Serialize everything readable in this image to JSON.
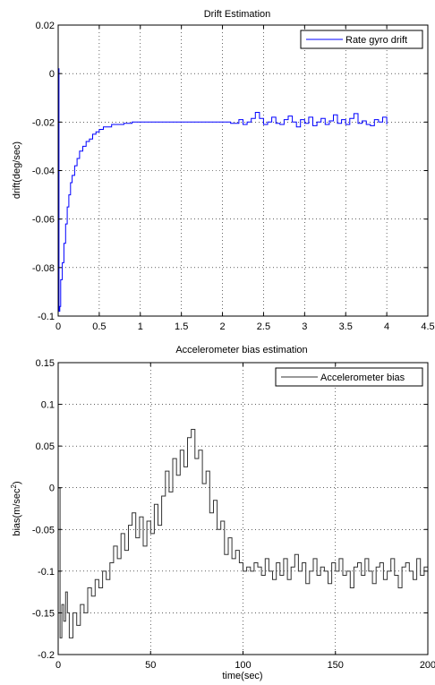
{
  "chart_data": [
    {
      "type": "line",
      "title": "Drift Estimation",
      "xlabel": "",
      "ylabel": "drift(deg/sec)",
      "xlim": [
        0,
        4.5
      ],
      "ylim": [
        -0.1,
        0.02
      ],
      "xticks": [
        0,
        0.5,
        1,
        1.5,
        2,
        2.5,
        3,
        3.5,
        4,
        4.5
      ],
      "xtick_labels": [
        "0",
        "0.5",
        "1",
        "1.5",
        "2",
        "2.5",
        "3",
        "3.5",
        "4",
        "4.5"
      ],
      "yticks": [
        0.02,
        0,
        -0.02,
        -0.04,
        -0.06,
        -0.08,
        -0.1
      ],
      "ytick_labels": [
        "0.02",
        "0",
        "-0.02",
        "-0.04",
        "-0.06",
        "-0.08",
        "-0.1"
      ],
      "grid": true,
      "legend": "top-right",
      "series": [
        {
          "name": "Rate gyro drift",
          "color": "#0000ff",
          "x": [
            0,
            0.01,
            0.02,
            0.03,
            0.05,
            0.07,
            0.09,
            0.11,
            0.13,
            0.15,
            0.17,
            0.2,
            0.23,
            0.26,
            0.3,
            0.34,
            0.38,
            0.42,
            0.46,
            0.5,
            0.55,
            0.6,
            0.65,
            0.7,
            0.8,
            0.9,
            1.0,
            1.2,
            1.4,
            1.6,
            1.8,
            2.0,
            2.1,
            2.2,
            2.25,
            2.3,
            2.35,
            2.4,
            2.45,
            2.5,
            2.55,
            2.6,
            2.65,
            2.7,
            2.75,
            2.8,
            2.85,
            2.9,
            2.95,
            3.0,
            3.05,
            3.1,
            3.15,
            3.2,
            3.25,
            3.3,
            3.35,
            3.4,
            3.45,
            3.5,
            3.55,
            3.6,
            3.65,
            3.7,
            3.75,
            3.8,
            3.85,
            3.9,
            3.95,
            4.0
          ],
          "y": [
            0.002,
            -0.098,
            -0.096,
            -0.085,
            -0.078,
            -0.07,
            -0.062,
            -0.055,
            -0.05,
            -0.045,
            -0.042,
            -0.038,
            -0.035,
            -0.032,
            -0.03,
            -0.028,
            -0.027,
            -0.025,
            -0.024,
            -0.023,
            -0.022,
            -0.022,
            -0.021,
            -0.021,
            -0.0205,
            -0.02,
            -0.02,
            -0.02,
            -0.02,
            -0.02,
            -0.02,
            -0.02,
            -0.0205,
            -0.019,
            -0.021,
            -0.02,
            -0.0185,
            -0.016,
            -0.0185,
            -0.021,
            -0.02,
            -0.018,
            -0.0205,
            -0.021,
            -0.019,
            -0.0175,
            -0.02,
            -0.022,
            -0.019,
            -0.0205,
            -0.018,
            -0.0215,
            -0.02,
            -0.0185,
            -0.021,
            -0.0195,
            -0.017,
            -0.0205,
            -0.019,
            -0.021,
            -0.0185,
            -0.0165,
            -0.0205,
            -0.0195,
            -0.021,
            -0.0215,
            -0.019,
            -0.02,
            -0.018,
            -0.021
          ]
        }
      ]
    },
    {
      "type": "line",
      "title": "Accelerometer bias estimation",
      "xlabel": "time(sec)",
      "ylabel": "bias(m/sec",
      "ylabel_sup": "2",
      "ylabel_end": ")",
      "xlim": [
        0,
        200
      ],
      "ylim": [
        -0.2,
        0.15
      ],
      "xticks": [
        0,
        50,
        100,
        150,
        200
      ],
      "xtick_labels": [
        "0",
        "50",
        "100",
        "150",
        "200"
      ],
      "yticks": [
        0.15,
        0.1,
        0.05,
        0,
        -0.05,
        -0.1,
        -0.15,
        -0.2
      ],
      "ytick_labels": [
        "0.15",
        "0.1",
        "0.05",
        "0",
        "-0.05",
        "-0.1",
        "-0.15",
        "-0.2"
      ],
      "grid": true,
      "legend": "top-right",
      "series": [
        {
          "name": "Accelerometer bias",
          "color": "#333333",
          "x": [
            0,
            1,
            2,
            3,
            4,
            5,
            6,
            8,
            10,
            12,
            14,
            16,
            18,
            20,
            22,
            24,
            26,
            28,
            30,
            32,
            34,
            36,
            38,
            40,
            42,
            44,
            46,
            48,
            50,
            52,
            54,
            56,
            58,
            60,
            62,
            64,
            66,
            68,
            70,
            72,
            74,
            76,
            78,
            80,
            82,
            84,
            86,
            88,
            90,
            92,
            94,
            96,
            98,
            100,
            102,
            104,
            106,
            108,
            110,
            112,
            114,
            116,
            118,
            120,
            122,
            124,
            126,
            128,
            130,
            132,
            134,
            136,
            138,
            140,
            142,
            144,
            146,
            148,
            150,
            152,
            154,
            156,
            158,
            160,
            162,
            164,
            166,
            168,
            170,
            172,
            174,
            176,
            178,
            180,
            182,
            184,
            186,
            188,
            190,
            192,
            194,
            196,
            198,
            200
          ],
          "y": [
            0.0,
            -0.18,
            -0.14,
            -0.16,
            -0.125,
            -0.15,
            -0.18,
            -0.15,
            -0.165,
            -0.14,
            -0.15,
            -0.12,
            -0.13,
            -0.11,
            -0.12,
            -0.1,
            -0.11,
            -0.09,
            -0.07,
            -0.085,
            -0.055,
            -0.075,
            -0.045,
            -0.03,
            -0.06,
            -0.035,
            -0.07,
            -0.04,
            -0.055,
            -0.02,
            -0.045,
            -0.01,
            0.02,
            -0.005,
            0.035,
            0.015,
            0.045,
            0.025,
            0.06,
            0.07,
            0.035,
            0.045,
            0.005,
            0.02,
            -0.03,
            -0.015,
            -0.05,
            -0.04,
            -0.08,
            -0.06,
            -0.085,
            -0.075,
            -0.09,
            -0.1,
            -0.095,
            -0.1,
            -0.09,
            -0.095,
            -0.105,
            -0.085,
            -0.1,
            -0.11,
            -0.09,
            -0.105,
            -0.085,
            -0.11,
            -0.095,
            -0.08,
            -0.1,
            -0.09,
            -0.115,
            -0.1,
            -0.085,
            -0.105,
            -0.095,
            -0.1,
            -0.115,
            -0.09,
            -0.1,
            -0.085,
            -0.105,
            -0.1,
            -0.12,
            -0.095,
            -0.09,
            -0.105,
            -0.085,
            -0.1,
            -0.115,
            -0.095,
            -0.09,
            -0.11,
            -0.1,
            -0.085,
            -0.105,
            -0.12,
            -0.095,
            -0.09,
            -0.1,
            -0.11,
            -0.085,
            -0.105,
            -0.095,
            -0.115
          ]
        }
      ]
    }
  ]
}
